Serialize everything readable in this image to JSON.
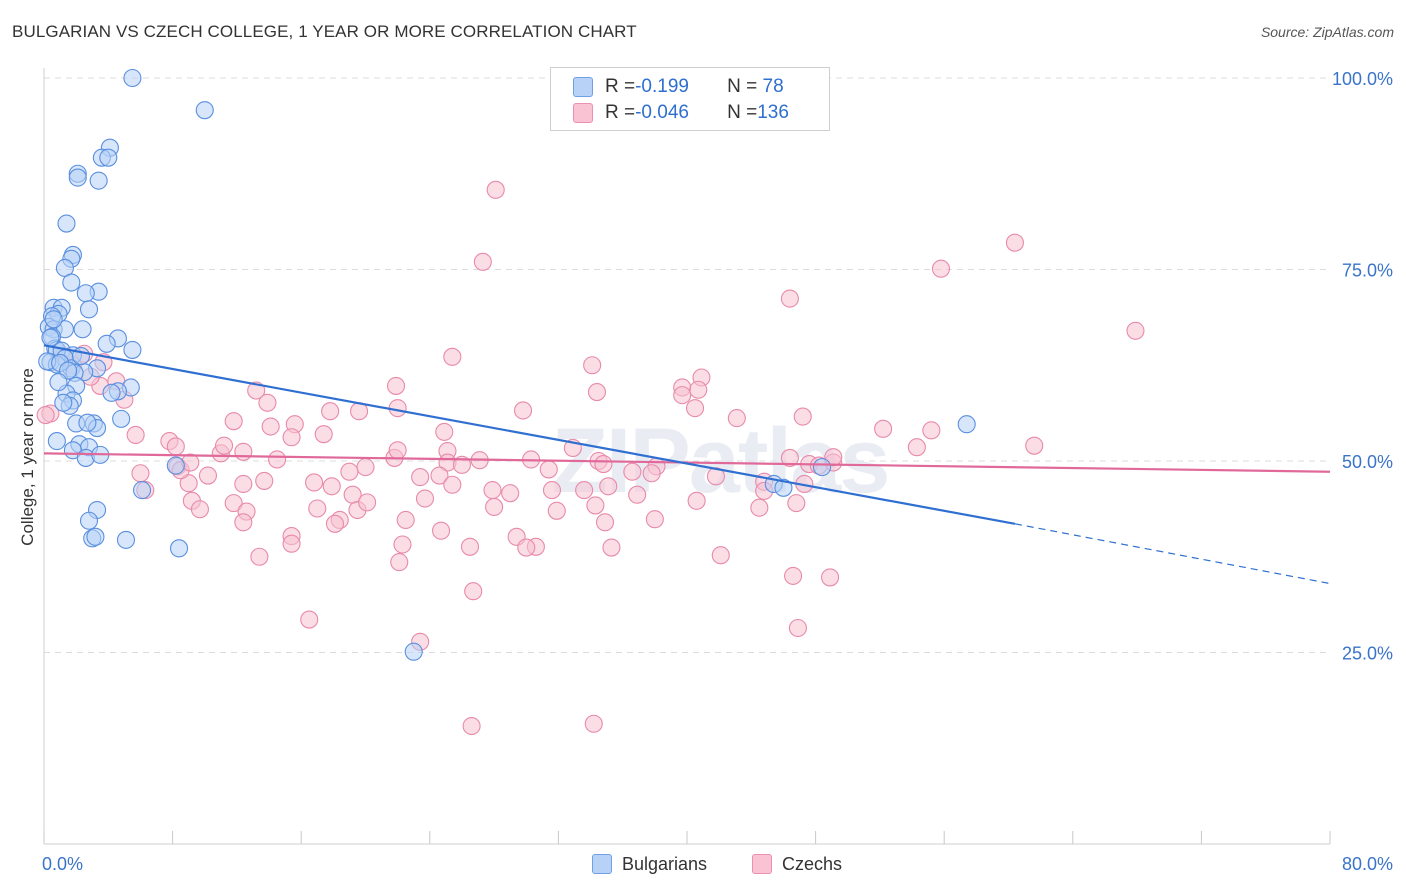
{
  "title": "BULGARIAN VS CZECH COLLEGE, 1 YEAR OR MORE CORRELATION CHART",
  "source": "Source: ZipAtlas.com",
  "watermark": "ZIPatlas",
  "colors": {
    "blue_fill": "#b7d2f6",
    "blue_stroke": "#5a8fe0",
    "blue_line": "#2f6fd2",
    "pink_fill": "#f7c1d2",
    "pink_stroke": "#e88aaa",
    "pink_line": "#e0699a",
    "tick_label": "#3a74c9"
  },
  "legend": {
    "rows": [
      {
        "r_label": "R = ",
        "r_value": "-0.199",
        "n_label": "N = ",
        "n_value": " 78"
      },
      {
        "r_label": "R = ",
        "r_value": "-0.046",
        "n_label": "N = ",
        "n_value": "136"
      }
    ]
  },
  "bottom_legend": {
    "items": [
      "Bulgarians",
      "Czechs"
    ]
  },
  "chart_data": {
    "type": "scatter",
    "title": "BULGARIAN VS CZECH COLLEGE, 1 YEAR OR MORE CORRELATION CHART",
    "xlabel": "",
    "ylabel": "College, 1 year or more",
    "xlim": [
      0,
      80
    ],
    "ylim": [
      0,
      103
    ],
    "x_tick_labels": [
      "0.0%",
      "80.0%"
    ],
    "y_ticks": [
      25,
      50,
      75,
      100
    ],
    "y_tick_labels": [
      "25.0%",
      "50.0%",
      "75.0%",
      "100.0%"
    ],
    "grid": "horizontal dashed",
    "legend_position": "top-center",
    "series": [
      {
        "name": "Bulgarians",
        "r": -0.199,
        "n": 78,
        "trend": {
          "x0": 0,
          "y0": 65.1,
          "x1": 60.4,
          "y1": 41.8,
          "dash_to_x": 80,
          "dash_to_y": 34.0
        },
        "points": [
          [
            5.5,
            100.0
          ],
          [
            10.0,
            95.8
          ],
          [
            4.1,
            90.9
          ],
          [
            3.6,
            89.6
          ],
          [
            4.0,
            89.6
          ],
          [
            2.1,
            87.5
          ],
          [
            2.1,
            87.0
          ],
          [
            3.4,
            86.6
          ],
          [
            1.4,
            81.0
          ],
          [
            1.8,
            76.9
          ],
          [
            1.7,
            76.4
          ],
          [
            1.3,
            75.2
          ],
          [
            1.7,
            73.3
          ],
          [
            3.4,
            72.1
          ],
          [
            2.6,
            71.9
          ],
          [
            0.6,
            70.0
          ],
          [
            1.1,
            70.0
          ],
          [
            2.8,
            69.8
          ],
          [
            0.9,
            69.2
          ],
          [
            0.5,
            68.9
          ],
          [
            0.3,
            67.5
          ],
          [
            0.6,
            67.2
          ],
          [
            1.3,
            67.2
          ],
          [
            2.4,
            67.2
          ],
          [
            0.5,
            66.2
          ],
          [
            4.6,
            66.0
          ],
          [
            3.9,
            65.3
          ],
          [
            0.7,
            64.7
          ],
          [
            0.8,
            64.5
          ],
          [
            5.5,
            64.5
          ],
          [
            1.1,
            64.4
          ],
          [
            1.8,
            63.8
          ],
          [
            1.3,
            63.4
          ],
          [
            0.4,
            62.9
          ],
          [
            0.8,
            62.6
          ],
          [
            1.7,
            62.1
          ],
          [
            3.3,
            62.1
          ],
          [
            2.5,
            61.6
          ],
          [
            1.9,
            61.5
          ],
          [
            2.0,
            59.8
          ],
          [
            5.4,
            59.6
          ],
          [
            4.6,
            59.1
          ],
          [
            1.4,
            58.8
          ],
          [
            1.8,
            57.9
          ],
          [
            1.6,
            57.2
          ],
          [
            4.8,
            55.5
          ],
          [
            3.1,
            54.9
          ],
          [
            3.3,
            54.3
          ],
          [
            2.0,
            54.9
          ],
          [
            0.8,
            52.6
          ],
          [
            2.2,
            52.2
          ],
          [
            2.8,
            51.8
          ],
          [
            1.8,
            51.4
          ],
          [
            2.6,
            50.4
          ],
          [
            3.5,
            50.8
          ],
          [
            8.2,
            49.4
          ],
          [
            6.1,
            46.2
          ],
          [
            3.3,
            43.6
          ],
          [
            2.8,
            42.2
          ],
          [
            3.0,
            39.9
          ],
          [
            3.2,
            40.1
          ],
          [
            5.1,
            39.7
          ],
          [
            8.4,
            38.6
          ],
          [
            23.0,
            25.1
          ],
          [
            57.4,
            54.8
          ],
          [
            48.4,
            49.2
          ],
          [
            45.4,
            47.0
          ],
          [
            46.0,
            46.5
          ],
          [
            0.2,
            63.0
          ],
          [
            0.4,
            66.1
          ],
          [
            0.6,
            68.5
          ],
          [
            1.0,
            62.8
          ],
          [
            1.5,
            61.8
          ],
          [
            2.3,
            63.7
          ],
          [
            1.2,
            57.6
          ],
          [
            2.7,
            55.0
          ],
          [
            4.2,
            58.9
          ],
          [
            0.9,
            60.3
          ]
        ]
      },
      {
        "name": "Czechs",
        "r": -0.046,
        "n": 136,
        "trend": {
          "x0": 0,
          "y0": 51.0,
          "x1": 80,
          "y1": 48.6
        },
        "points": [
          [
            28.1,
            85.4
          ],
          [
            60.4,
            78.5
          ],
          [
            27.3,
            76.0
          ],
          [
            55.8,
            75.1
          ],
          [
            46.4,
            71.2
          ],
          [
            67.9,
            67.0
          ],
          [
            25.4,
            63.6
          ],
          [
            34.1,
            62.5
          ],
          [
            40.9,
            60.9
          ],
          [
            39.7,
            59.6
          ],
          [
            40.7,
            59.3
          ],
          [
            21.9,
            59.8
          ],
          [
            13.2,
            59.2
          ],
          [
            34.4,
            59.0
          ],
          [
            39.7,
            58.6
          ],
          [
            13.9,
            57.6
          ],
          [
            19.6,
            56.5
          ],
          [
            22.0,
            56.9
          ],
          [
            17.8,
            56.5
          ],
          [
            29.8,
            56.6
          ],
          [
            40.5,
            56.9
          ],
          [
            43.1,
            55.6
          ],
          [
            47.2,
            55.8
          ],
          [
            15.6,
            54.8
          ],
          [
            11.8,
            55.2
          ],
          [
            14.1,
            54.5
          ],
          [
            52.2,
            54.2
          ],
          [
            55.2,
            54.0
          ],
          [
            17.4,
            53.5
          ],
          [
            15.4,
            53.1
          ],
          [
            24.9,
            53.8
          ],
          [
            7.8,
            52.6
          ],
          [
            8.2,
            51.9
          ],
          [
            11.0,
            51.0
          ],
          [
            12.4,
            51.2
          ],
          [
            32.9,
            51.7
          ],
          [
            61.6,
            52.0
          ],
          [
            25.1,
            51.3
          ],
          [
            30.3,
            50.2
          ],
          [
            21.8,
            50.4
          ],
          [
            34.5,
            50.0
          ],
          [
            25.1,
            49.8
          ],
          [
            26.0,
            49.5
          ],
          [
            20.0,
            49.2
          ],
          [
            8.3,
            49.3
          ],
          [
            19.0,
            48.6
          ],
          [
            24.6,
            48.1
          ],
          [
            23.4,
            47.9
          ],
          [
            36.6,
            48.6
          ],
          [
            44.8,
            47.3
          ],
          [
            44.8,
            46.1
          ],
          [
            47.6,
            49.6
          ],
          [
            49.1,
            49.8
          ],
          [
            9.0,
            47.1
          ],
          [
            12.4,
            47.0
          ],
          [
            13.7,
            47.4
          ],
          [
            17.9,
            46.7
          ],
          [
            27.9,
            46.2
          ],
          [
            31.6,
            46.2
          ],
          [
            29.0,
            45.8
          ],
          [
            33.6,
            46.2
          ],
          [
            19.2,
            45.6
          ],
          [
            6.3,
            46.2
          ],
          [
            9.2,
            44.8
          ],
          [
            11.8,
            44.5
          ],
          [
            12.6,
            43.4
          ],
          [
            17.0,
            43.8
          ],
          [
            19.5,
            43.6
          ],
          [
            28.0,
            44.0
          ],
          [
            34.3,
            44.2
          ],
          [
            9.7,
            43.7
          ],
          [
            18.4,
            42.3
          ],
          [
            22.5,
            42.3
          ],
          [
            34.9,
            42.0
          ],
          [
            18.1,
            41.8
          ],
          [
            24.7,
            40.9
          ],
          [
            29.4,
            40.1
          ],
          [
            15.4,
            40.2
          ],
          [
            15.4,
            39.2
          ],
          [
            13.4,
            37.5
          ],
          [
            22.3,
            39.1
          ],
          [
            26.5,
            38.8
          ],
          [
            30.6,
            38.8
          ],
          [
            30.0,
            38.7
          ],
          [
            35.3,
            38.7
          ],
          [
            42.1,
            37.7
          ],
          [
            46.6,
            35.0
          ],
          [
            22.1,
            36.8
          ],
          [
            48.9,
            34.8
          ],
          [
            26.7,
            33.0
          ],
          [
            16.5,
            29.3
          ],
          [
            46.9,
            28.2
          ],
          [
            23.4,
            26.4
          ],
          [
            26.6,
            15.4
          ],
          [
            34.2,
            15.7
          ],
          [
            34.8,
            49.6
          ],
          [
            38.1,
            49.3
          ],
          [
            48.2,
            49.4
          ],
          [
            54.3,
            51.8
          ],
          [
            49.1,
            50.5
          ],
          [
            35.1,
            46.7
          ],
          [
            47.3,
            47.0
          ],
          [
            31.4,
            48.9
          ],
          [
            8.5,
            48.8
          ],
          [
            10.2,
            48.1
          ],
          [
            9.1,
            49.8
          ],
          [
            14.5,
            50.2
          ],
          [
            25.4,
            46.9
          ],
          [
            36.9,
            45.6
          ],
          [
            40.6,
            44.8
          ],
          [
            44.5,
            43.9
          ],
          [
            46.8,
            44.5
          ],
          [
            6.0,
            48.4
          ],
          [
            0.4,
            56.2
          ],
          [
            0.1,
            56.0
          ],
          [
            3.5,
            59.8
          ],
          [
            5.0,
            58.0
          ],
          [
            4.5,
            60.4
          ],
          [
            2.9,
            61.0
          ],
          [
            2.5,
            64.0
          ],
          [
            1.8,
            62.5
          ],
          [
            1.2,
            63.7
          ],
          [
            3.7,
            62.9
          ],
          [
            5.7,
            53.4
          ],
          [
            11.2,
            52.0
          ],
          [
            22.0,
            51.4
          ],
          [
            27.1,
            50.1
          ],
          [
            37.8,
            48.4
          ],
          [
            41.8,
            48.0
          ],
          [
            46.4,
            50.4
          ],
          [
            16.8,
            47.2
          ],
          [
            20.1,
            44.6
          ],
          [
            23.7,
            45.1
          ],
          [
            31.9,
            43.5
          ],
          [
            38.0,
            42.4
          ],
          [
            12.4,
            42.0
          ]
        ]
      }
    ]
  }
}
